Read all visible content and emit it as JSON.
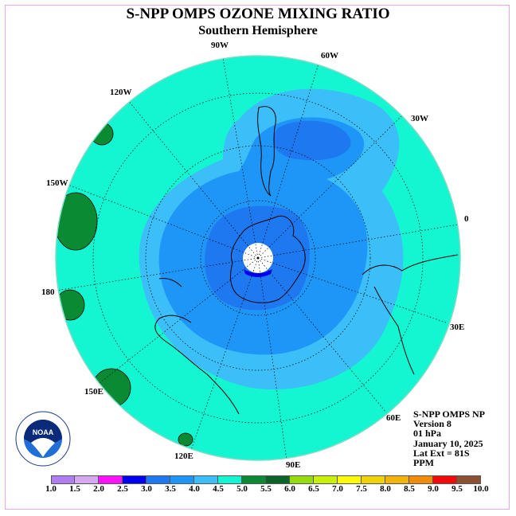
{
  "title": "S-NPP OMPS OZONE MIXING RATIO",
  "subtitle": "Southern Hemisphere",
  "longitude_labels": {
    "lon_90w": "90W",
    "lon_60w": "60W",
    "lon_30w": "30W",
    "lon_0": "0",
    "lon_30e": "30E",
    "lon_60e": "60E",
    "lon_90e": "90E",
    "lon_120e": "120E",
    "lon_150e": "150E",
    "lon_180": "180",
    "lon_150w": "150W",
    "lon_120w": "120W"
  },
  "info": {
    "instrument": "S-NPP OMPS NP",
    "version": "Version 8",
    "level": "01 hPa",
    "date": "January 10, 2025",
    "lat_ext": "Lat Ext = 81S",
    "units": "PPM"
  },
  "logo_text": "NOAA",
  "colorbar": {
    "labels": [
      "1.0",
      "1.5",
      "2.0",
      "2.5",
      "3.0",
      "3.5",
      "4.0",
      "4.5",
      "5.0",
      "5.5",
      "6.0",
      "6.5",
      "7.0",
      "7.5",
      "8.0",
      "8.5",
      "9.0",
      "9.5",
      "10.0"
    ],
    "colors": [
      "#b07ef0",
      "#d6a8f0",
      "#ff10ff",
      "#0000f0",
      "#1e78f0",
      "#1e96f8",
      "#3cbef8",
      "#14f5d2",
      "#0a8a32",
      "#0a6428",
      "#96dc0a",
      "#c8f00a",
      "#fafa0a",
      "#f0d20a",
      "#f0b40a",
      "#f08c0a",
      "#f00a0a",
      "#8c5032"
    ]
  }
}
